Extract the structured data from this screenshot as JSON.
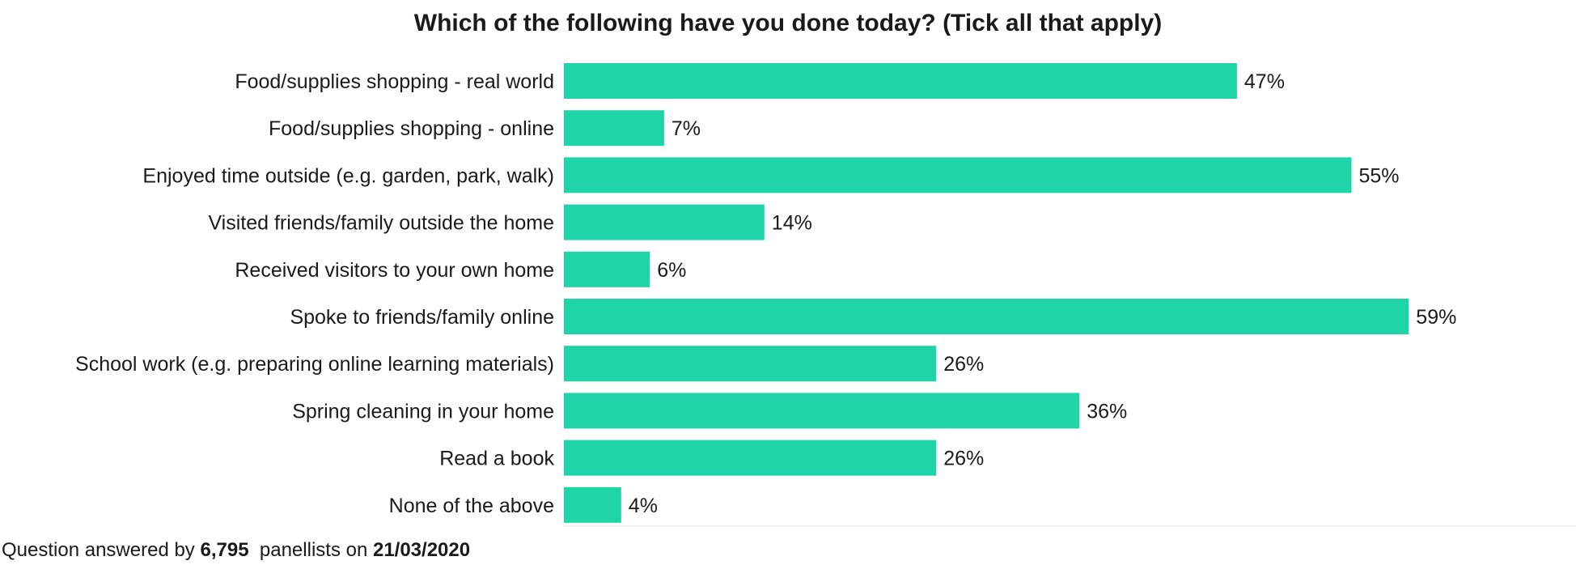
{
  "chart_data": {
    "type": "bar",
    "orientation": "horizontal",
    "title": "Which of the following have you done today? (Tick all that apply)",
    "categories": [
      "Food/supplies shopping - real world",
      "Food/supplies shopping - online",
      "Enjoyed time outside (e.g. garden, park, walk)",
      "Visited friends/family outside the home",
      "Received visitors to your own home",
      "Spoke to friends/family online",
      "School work (e.g. preparing online learning materials)",
      "Spring cleaning in your home",
      "Read a book",
      "None of the above"
    ],
    "values": [
      47,
      7,
      55,
      14,
      6,
      59,
      26,
      36,
      26,
      4
    ],
    "value_labels": [
      "47%",
      "7%",
      "55%",
      "14%",
      "6%",
      "59%",
      "26%",
      "36%",
      "26%",
      "4%"
    ],
    "unit": "%",
    "bar_color": "#1fd4a6",
    "grid": false,
    "legend": "none"
  },
  "footnote": {
    "prefix": "Question answered by ",
    "count": "6,795",
    "middle": "  panellists on ",
    "date": "21/03/2020"
  }
}
